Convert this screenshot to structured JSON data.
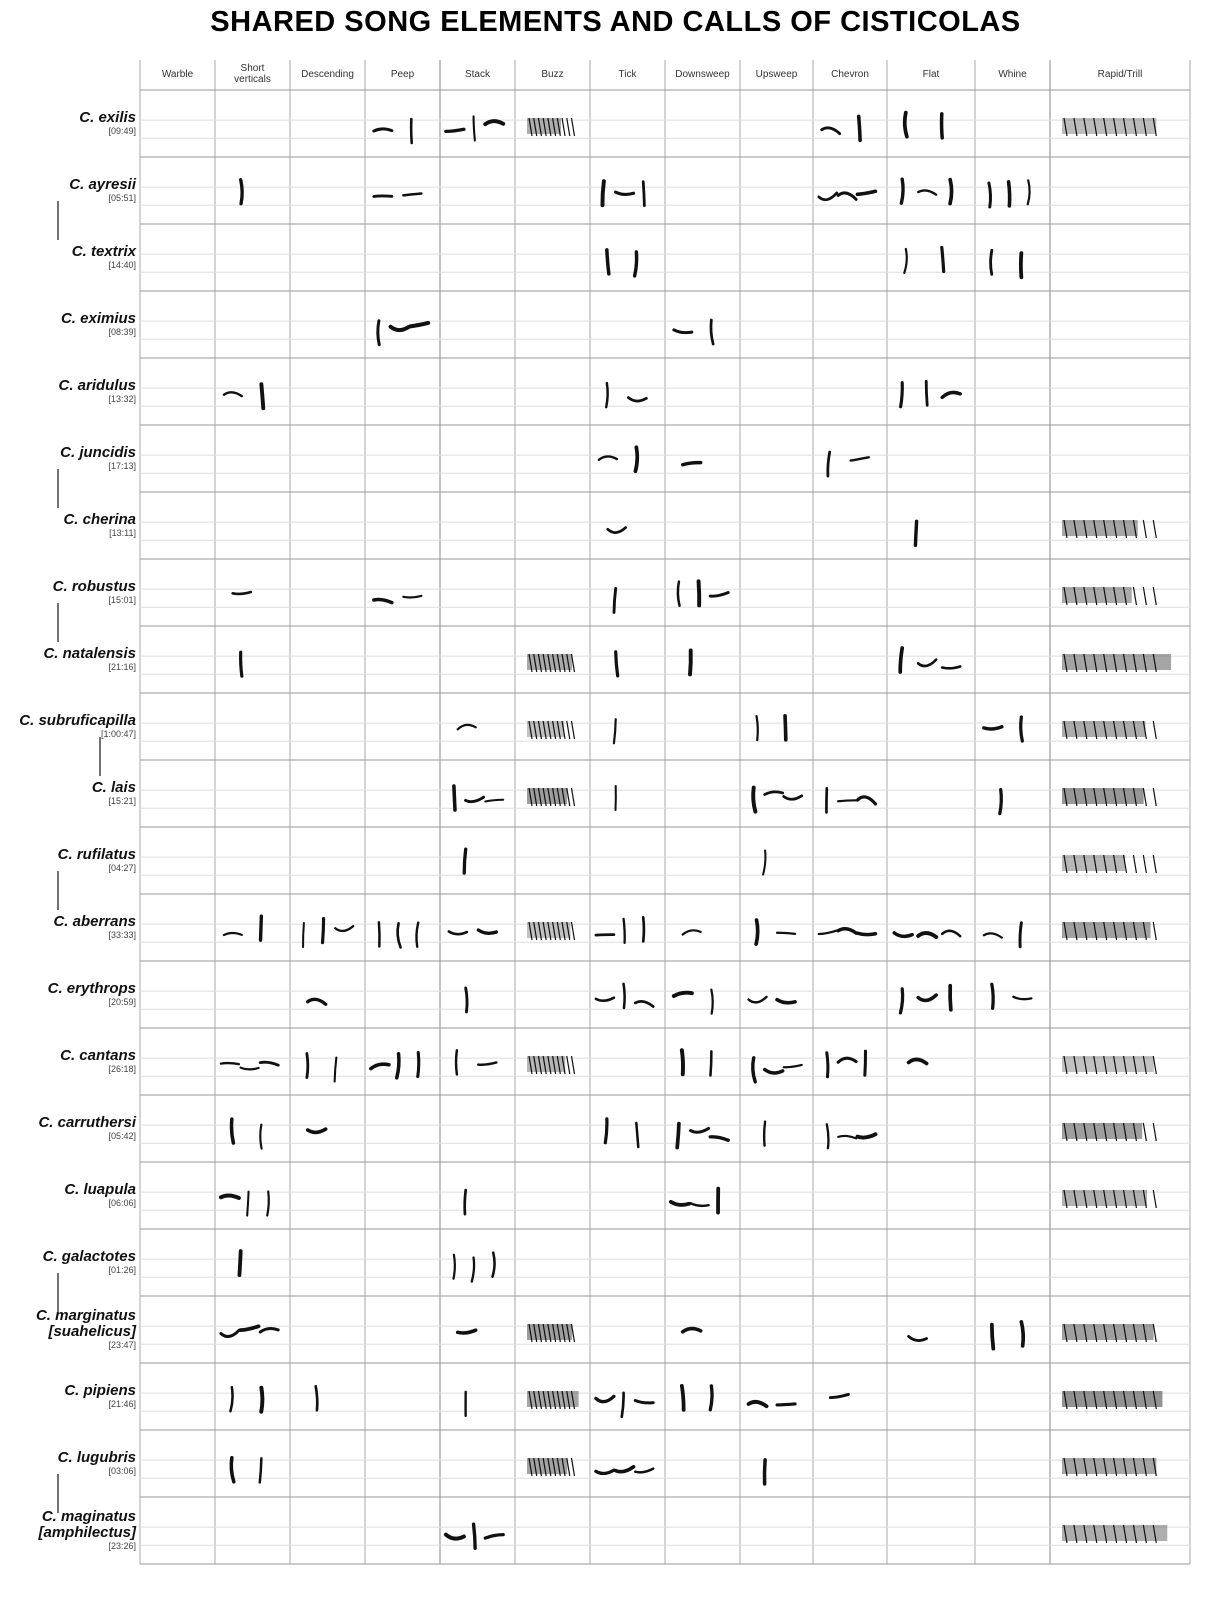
{
  "title": "SHARED SONG ELEMENTS AND CALLS OF CISTICOLAS",
  "columns": [
    "Warble",
    "Short verticals",
    "Descending",
    "Peep",
    "Stack",
    "Buzz",
    "Tick",
    "Downsweep",
    "Upsweep",
    "Chevron",
    "Flat",
    "Whine",
    "Rapid/Trill"
  ],
  "rows": [
    {
      "name": "C. exilis",
      "time": "[09:49]"
    },
    {
      "name": "C. ayresii",
      "time": "[05:51]"
    },
    {
      "name": "C. textrix",
      "time": "[14:40]"
    },
    {
      "name": "C. eximius",
      "time": "[08:39]"
    },
    {
      "name": "C. aridulus",
      "time": "[13:32]"
    },
    {
      "name": "C. juncidis",
      "time": "[17:13]"
    },
    {
      "name": "C. cherina",
      "time": "[13:11]"
    },
    {
      "name": "C. robustus",
      "time": "[15:01]"
    },
    {
      "name": "C. natalensis",
      "time": "[21:16]"
    },
    {
      "name": "C. subruficapilla",
      "time": "[1:00:47]"
    },
    {
      "name": "C. lais",
      "time": "[15:21]"
    },
    {
      "name": "C. rufilatus",
      "time": "[04:27]"
    },
    {
      "name": "C. aberrans",
      "time": "[33:33]"
    },
    {
      "name": "C. erythrops",
      "time": "[20:59]"
    },
    {
      "name": "C. cantans",
      "time": "[26:18]"
    },
    {
      "name": "C. carruthersi",
      "time": "[05:42]"
    },
    {
      "name": "C. luapula",
      "time": "[06:06]"
    },
    {
      "name": "C. galactotes",
      "time": "[01:26]"
    },
    {
      "name": "C. marginatus",
      "subname": "[suahelicus]",
      "time": "[23:47]"
    },
    {
      "name": "C. pipiens",
      "time": "[21:46]"
    },
    {
      "name": "C. lugubris",
      "time": "[03:06]"
    },
    {
      "name": "C. maginatus",
      "subname": "[amphilectus]",
      "time": "[23:26]"
    }
  ]
}
